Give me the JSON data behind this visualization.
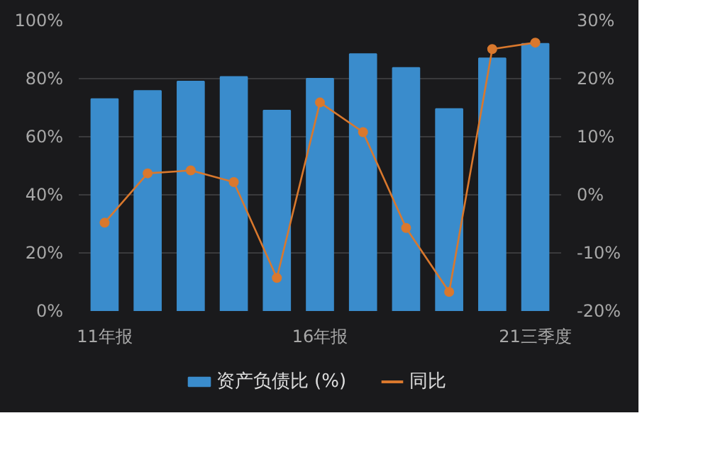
{
  "chart_data": {
    "type": "bar",
    "categories": [
      "11年报",
      null,
      null,
      null,
      null,
      "16年报",
      null,
      null,
      null,
      null,
      "21三季度"
    ],
    "series": [
      {
        "name": "资产负债比 (%)",
        "color": "#3a8ccc",
        "values": [
          73,
          75.8,
          79,
          80.6,
          69,
          80,
          88.5,
          83.7,
          69.6,
          87,
          92
        ]
      },
      {
        "name": "同比",
        "type": "line",
        "axis": "y2",
        "color": "#d9782d",
        "values": [
          -4.8,
          3.7,
          4.2,
          2.2,
          -14.3,
          15.9,
          10.8,
          -5.7,
          -16.7,
          25.1,
          26.2
        ]
      }
    ],
    "ylim": [
      0,
      100
    ],
    "yticks": [
      {
        "value": 0,
        "label": "0%"
      },
      {
        "value": 20,
        "label": "20%"
      },
      {
        "value": 40,
        "label": "40%"
      },
      {
        "value": 60,
        "label": "60%"
      },
      {
        "value": 80,
        "label": "80%"
      },
      {
        "value": 100,
        "label": "100%"
      }
    ],
    "y2lim": [
      -20,
      30
    ],
    "y2ticks": [
      {
        "value": -20,
        "label": "-20%"
      },
      {
        "value": -10,
        "label": "-10%"
      },
      {
        "value": 0,
        "label": "0%"
      },
      {
        "value": 10,
        "label": "10%"
      },
      {
        "value": 20,
        "label": "20%"
      },
      {
        "value": 30,
        "label": "30%"
      }
    ],
    "grid": "y",
    "legend": "bottom",
    "marker": "circle",
    "line_style": "solid"
  }
}
